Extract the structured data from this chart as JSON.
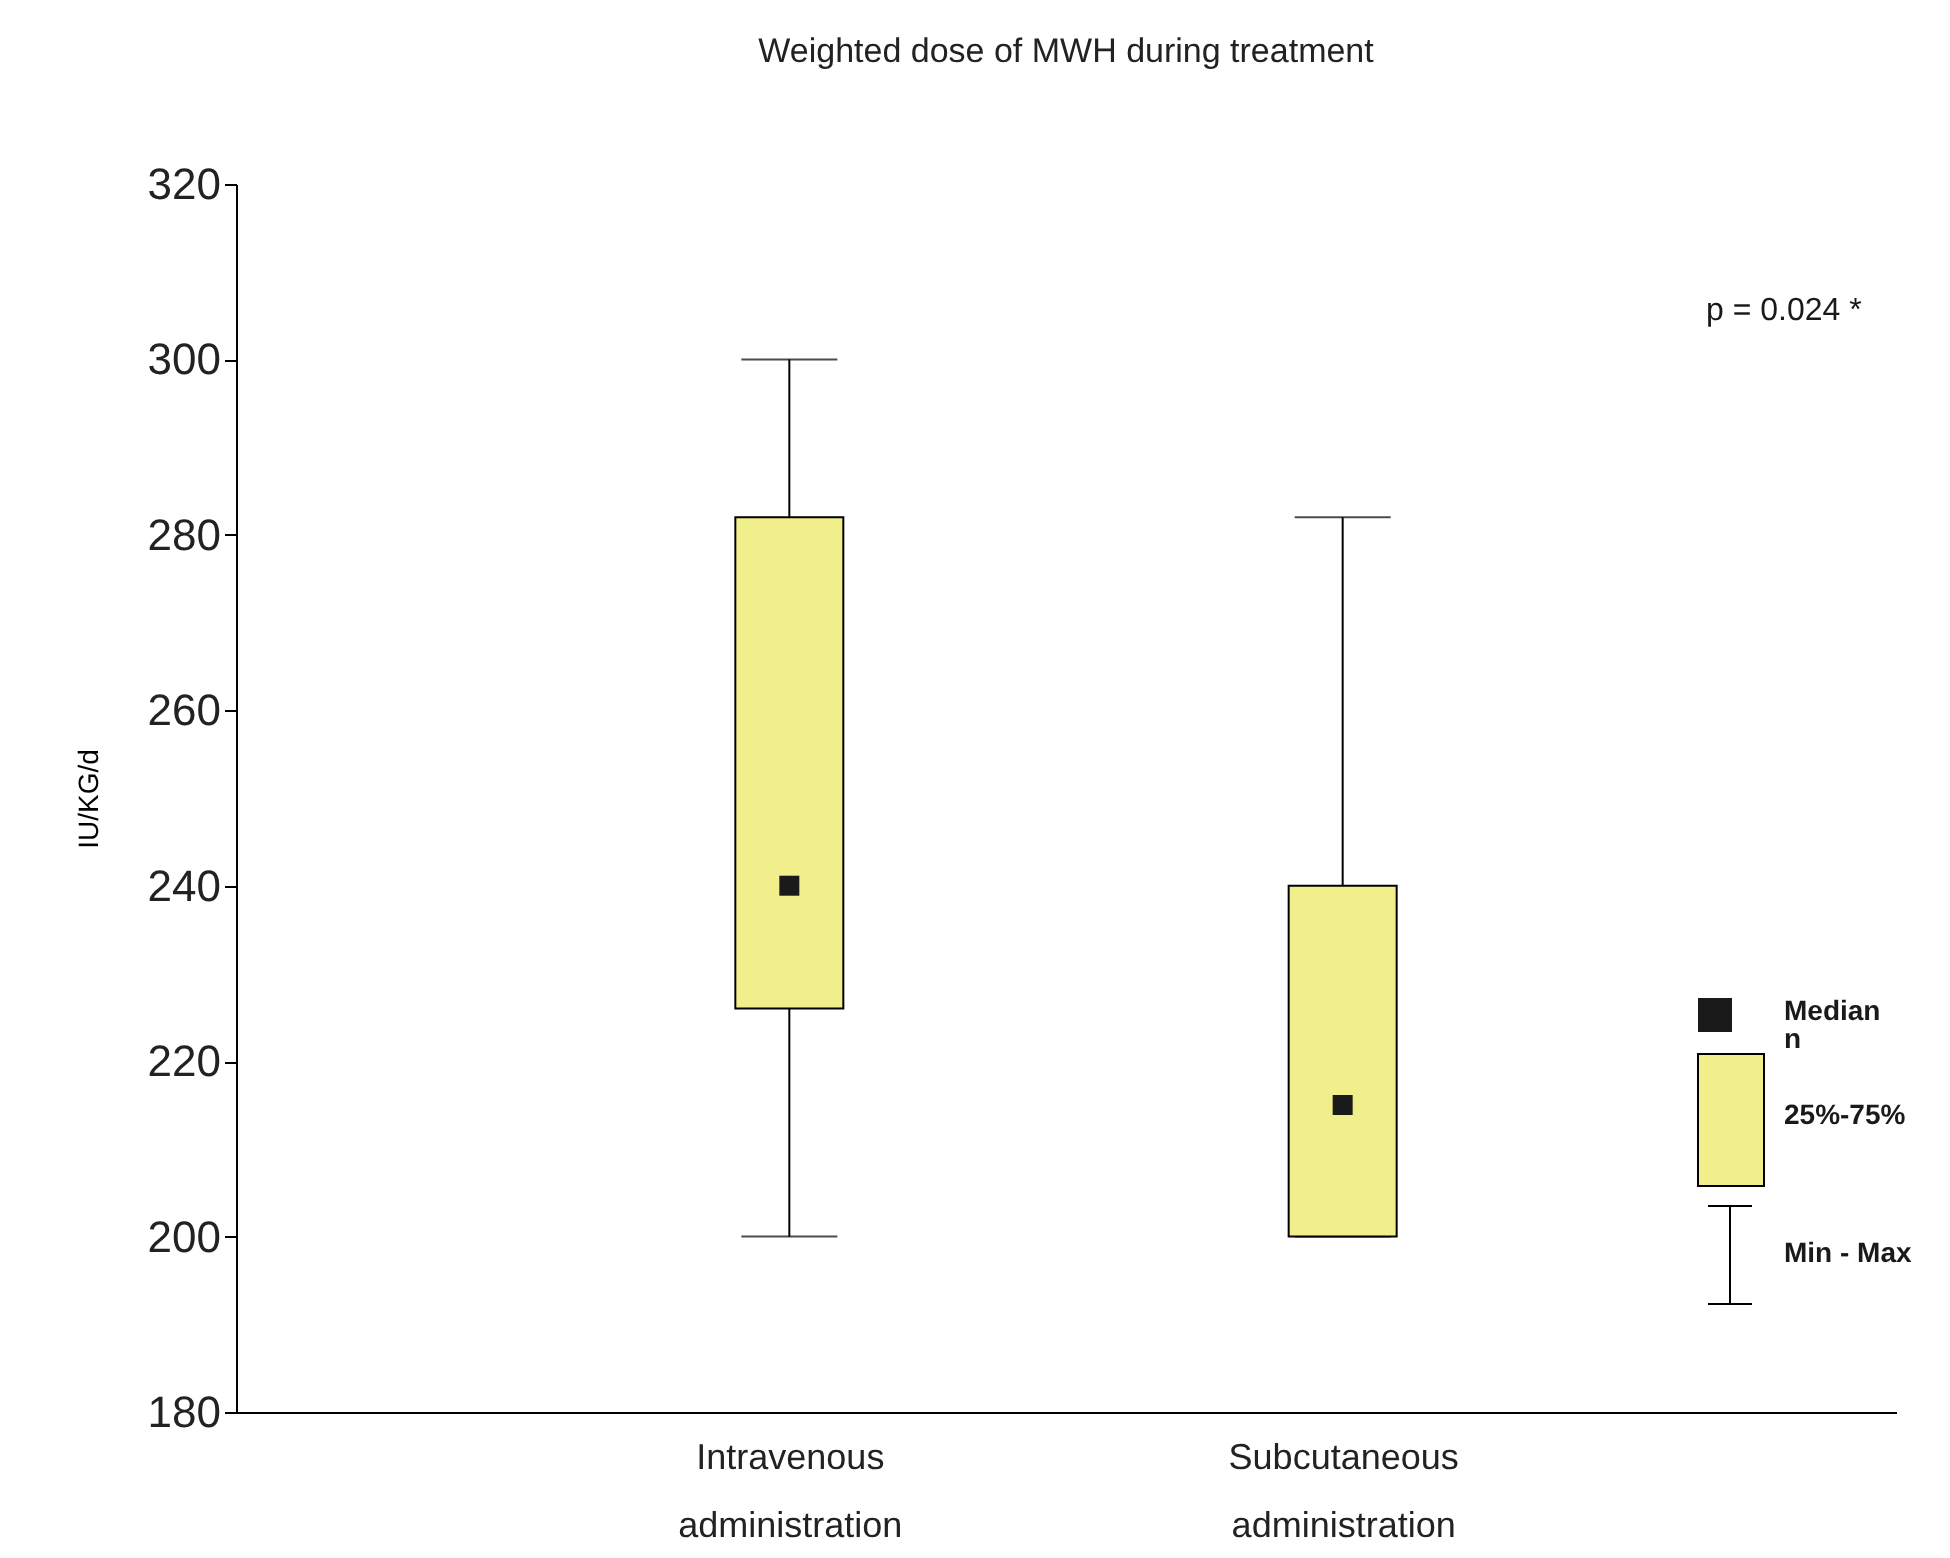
{
  "chart_data": {
    "type": "box",
    "title": "Weighted dose of  MWH during treatment",
    "ylabel": "IU/KG/d",
    "categories": [
      "Intravenous\nadministration",
      "Subcutaneous\nadministration"
    ],
    "series": [
      {
        "color": "#f0ef8c",
        "boxes": [
          {
            "low": 200,
            "q1": 226,
            "median": 240,
            "q3": 282,
            "high": 300
          },
          {
            "low": 200,
            "q1": 200,
            "median": 215,
            "q3": 240,
            "high": 282
          }
        ]
      }
    ],
    "ylim": [
      180,
      320
    ],
    "yticks": [
      180,
      200,
      220,
      240,
      260,
      280,
      300,
      320
    ],
    "marker": "square",
    "grid": false,
    "annotations": [
      "p = 0.024 *",
      "Median\nn",
      "25%-75%",
      "Min - Max"
    ]
  }
}
